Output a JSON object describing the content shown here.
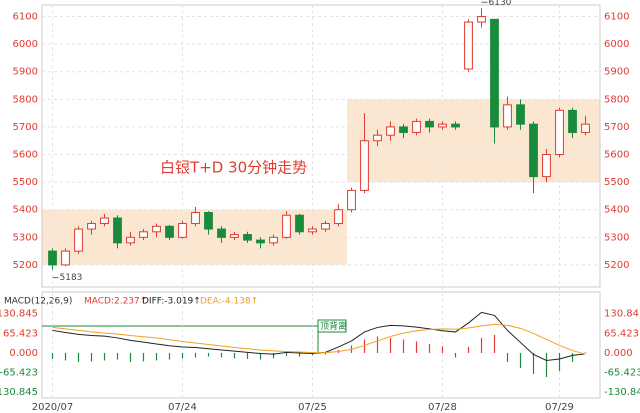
{
  "chart_data": [
    {
      "type": "candlestick",
      "title": "白银T+D   30分钟走势",
      "categories": [
        "2020/07",
        null,
        null,
        null,
        null,
        null,
        null,
        null,
        null,
        null,
        "07/24",
        null,
        null,
        null,
        null,
        null,
        null,
        null,
        null,
        null,
        "07/25",
        null,
        null,
        null,
        null,
        null,
        null,
        null,
        null,
        null,
        "07/28",
        null,
        null,
        null,
        null,
        null,
        null,
        null,
        null,
        "07/29",
        null,
        null
      ],
      "open": [
        5250,
        5200,
        5250,
        5330,
        5350,
        5370,
        5280,
        5300,
        5320,
        5340,
        5300,
        5350,
        5390,
        5330,
        5300,
        5310,
        5290,
        5280,
        5300,
        5380,
        5320,
        5330,
        5350,
        5400,
        5470,
        5650,
        5670,
        5700,
        5680,
        5720,
        5700,
        5710,
        5910,
        6080,
        6090,
        5700,
        5780,
        5710,
        5520,
        5600,
        5760,
        5680
      ],
      "high": [
        5260,
        5260,
        5340,
        5360,
        5385,
        5380,
        5320,
        5330,
        5350,
        5345,
        5360,
        5410,
        5395,
        5340,
        5320,
        5320,
        5300,
        5310,
        5395,
        5385,
        5340,
        5360,
        5420,
        5480,
        5750,
        5690,
        5720,
        5710,
        5730,
        5730,
        5720,
        5720,
        6090,
        6130,
        6090,
        5810,
        5800,
        5720,
        5620,
        5770,
        5770,
        5740
      ],
      "low": [
        5183,
        5195,
        5240,
        5310,
        5340,
        5260,
        5270,
        5290,
        5300,
        5290,
        5295,
        5340,
        5310,
        5280,
        5290,
        5280,
        5260,
        5270,
        5295,
        5310,
        5310,
        5320,
        5340,
        5390,
        5460,
        5630,
        5650,
        5660,
        5670,
        5680,
        5690,
        5690,
        5900,
        6060,
        5640,
        5690,
        5690,
        5460,
        5500,
        5590,
        5660,
        5670
      ],
      "close": [
        5200,
        5250,
        5330,
        5350,
        5370,
        5280,
        5300,
        5320,
        5340,
        5300,
        5350,
        5390,
        5330,
        5300,
        5310,
        5290,
        5280,
        5300,
        5380,
        5320,
        5330,
        5350,
        5400,
        5470,
        5650,
        5670,
        5700,
        5680,
        5720,
        5700,
        5710,
        5700,
        6080,
        6100,
        5700,
        5780,
        5710,
        5520,
        5600,
        5760,
        5680,
        5710
      ],
      "annotations": [
        {
          "text": "5183"
        },
        {
          "text": "6130"
        }
      ],
      "up_color": "#e03c31",
      "down_color": "#1a8a3c",
      "ylim": [
        5120,
        6140
      ],
      "yticks": [
        5200,
        5300,
        5400,
        5500,
        5600,
        5700,
        5800,
        5900,
        6000,
        6100
      ],
      "grid": true
    },
    {
      "type": "macd",
      "title": "MACD(12,26,9)",
      "annotations": [
        {
          "text": "顶背离"
        }
      ],
      "series": [
        {
          "name": "MACD:2.237↑",
          "color": "#e03c31",
          "down_color": "#1a8a3c",
          "kind": "bar",
          "values": [
            -20,
            -25,
            -30,
            -28,
            -25,
            -22,
            -30,
            -28,
            -25,
            -22,
            -18,
            -15,
            -12,
            -15,
            -18,
            -20,
            -22,
            -18,
            -10,
            -12,
            -8,
            -5,
            10,
            25,
            45,
            55,
            50,
            45,
            38,
            30,
            22,
            -15,
            20,
            50,
            60,
            -30,
            -50,
            -70,
            -80,
            -60,
            -30,
            2.237
          ]
        },
        {
          "name": "DIFF:-3.019↑",
          "color": "#222222",
          "kind": "line",
          "values": [
            75,
            68,
            62,
            58,
            56,
            50,
            42,
            36,
            30,
            24,
            20,
            18,
            14,
            10,
            6,
            2,
            -2,
            -4,
            2,
            0,
            -2,
            2,
            20,
            40,
            70,
            85,
            92,
            90,
            86,
            80,
            74,
            70,
            100,
            135,
            125,
            75,
            35,
            -5,
            -25,
            -20,
            -8,
            -3.019
          ]
        },
        {
          "name": "DEA:-4.138↑",
          "color": "#f0a020",
          "kind": "line",
          "values": [
            85,
            80,
            75,
            70,
            66,
            63,
            58,
            54,
            50,
            44,
            38,
            33,
            28,
            23,
            18,
            14,
            10,
            7,
            5,
            3,
            1,
            1,
            5,
            12,
            25,
            40,
            55,
            66,
            74,
            78,
            80,
            79,
            83,
            90,
            95,
            92,
            82,
            65,
            45,
            25,
            8,
            -4.138
          ]
        }
      ],
      "ylim": [
        -150,
        183
      ],
      "yticks": [
        130.845,
        65.423,
        {
          "value": 0,
          "label": "0.000"
        },
        -65.423,
        -130.845
      ]
    }
  ]
}
